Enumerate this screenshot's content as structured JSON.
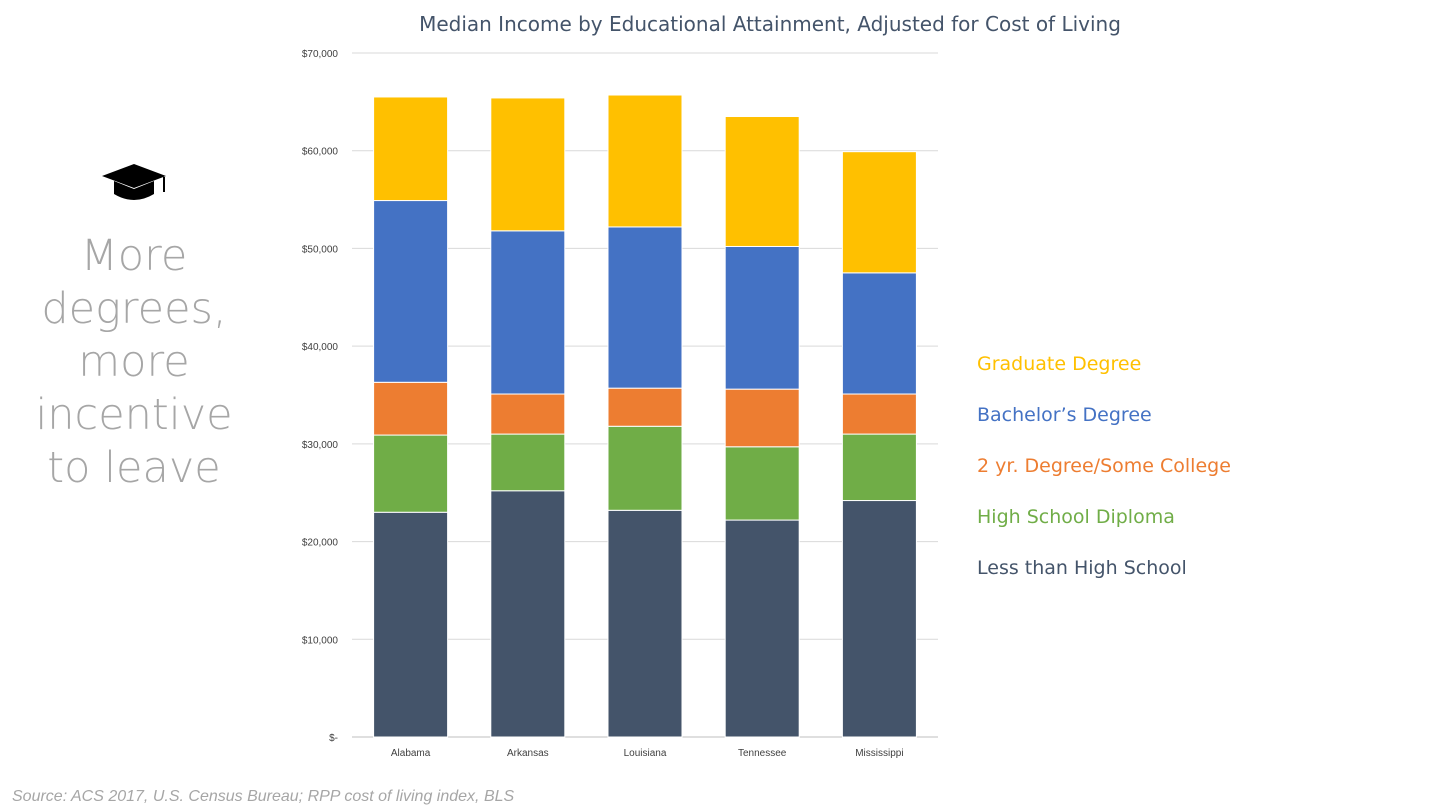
{
  "side": {
    "icon": "graduation-cap-icon",
    "lines": [
      "More",
      "degrees,",
      "more",
      "incentive",
      "to leave"
    ]
  },
  "source": "Source: ACS 2017, U.S. Census Bureau; RPP cost of living index, BLS",
  "chart_data": {
    "type": "bar",
    "stacked": true,
    "title": "Median Income by Educational Attainment, Adjusted for Cost of Living",
    "xlabel": "",
    "ylabel": "",
    "categories": [
      "Alabama",
      "Arkansas",
      "Louisiana",
      "Tennessee",
      "Mississippi"
    ],
    "ylim": [
      0,
      70000
    ],
    "ytick_labels": [
      "$-",
      "$10,000",
      "$20,000",
      "$30,000",
      "$40,000",
      "$50,000",
      "$60,000",
      "$70,000"
    ],
    "grid": true,
    "legend_position": "right",
    "series": [
      {
        "name": "Less than High School",
        "color": "#44546a",
        "values": [
          23000,
          25200,
          23200,
          22200,
          24200
        ]
      },
      {
        "name": "High School Diploma",
        "color": "#70ad47",
        "values": [
          7900,
          5800,
          8600,
          7500,
          6800
        ]
      },
      {
        "name": "2 yr. Degree/Some College",
        "color": "#ed7d31",
        "values": [
          5400,
          4100,
          3900,
          5900,
          4100
        ]
      },
      {
        "name": "Bachelor’s Degree",
        "color": "#4472c4",
        "values": [
          18600,
          16700,
          16500,
          14600,
          12400
        ]
      },
      {
        "name": "Graduate Degree",
        "color": "#ffc000",
        "values": [
          10600,
          13600,
          13500,
          13300,
          12400
        ]
      }
    ]
  }
}
